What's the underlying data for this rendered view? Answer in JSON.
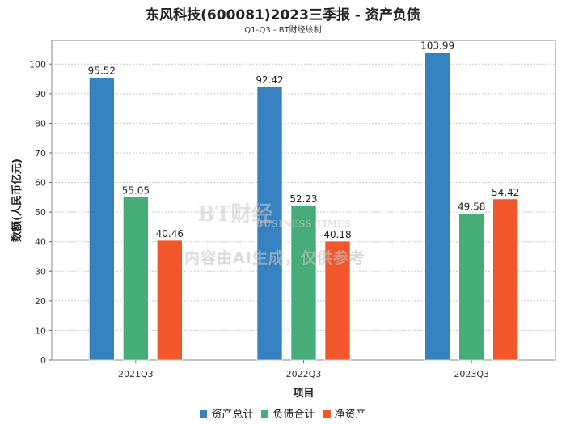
{
  "chart_data": {
    "type": "bar",
    "title": "东风科技(600081)2023三季报 - 资产负债",
    "subtitle": "Q1-Q3 - BT财经绘制",
    "xlabel": "项目",
    "ylabel": "数额(人民币亿元)",
    "categories": [
      "2021Q3",
      "2022Q3",
      "2023Q3"
    ],
    "series": [
      {
        "name": "资产总计",
        "color": "#3682c1",
        "values": [
          95.52,
          92.42,
          103.99
        ]
      },
      {
        "name": "负债合计",
        "color": "#46ac78",
        "values": [
          55.05,
          52.23,
          49.58
        ]
      },
      {
        "name": "净资产",
        "color": "#f1572a",
        "values": [
          40.46,
          40.18,
          54.42
        ]
      }
    ],
    "ylim": [
      0,
      108
    ],
    "yticks": [
      0,
      10,
      20,
      30,
      40,
      50,
      60,
      70,
      80,
      90,
      100
    ],
    "grid": true,
    "legend_position": "bottom"
  },
  "watermark": {
    "logo": "BT财经",
    "english": "BUSINESS TIMES",
    "notice": "内容由AI生成，仅供参考"
  }
}
